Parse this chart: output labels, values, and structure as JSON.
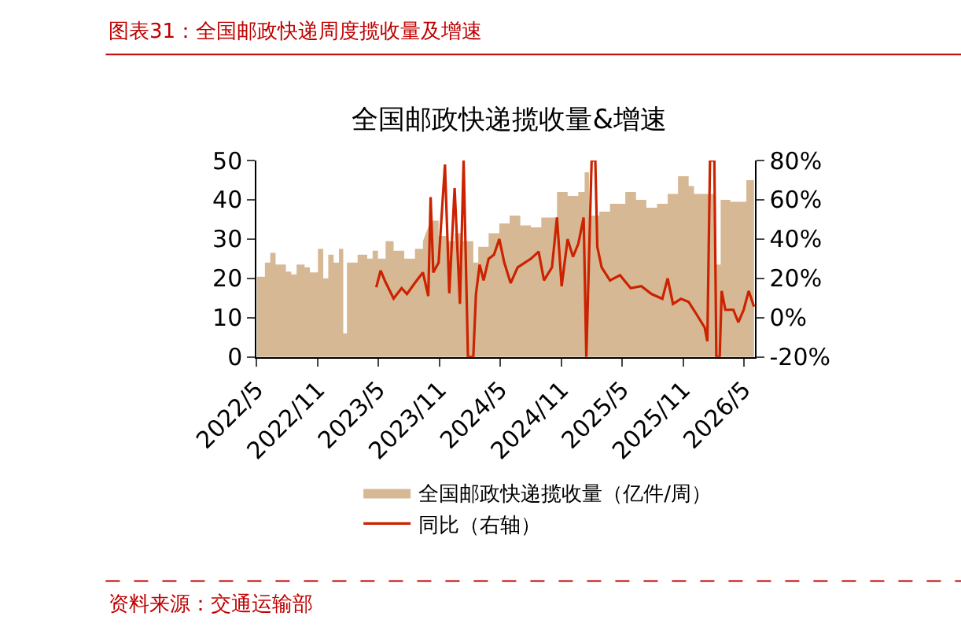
{
  "chart_data": {
    "type": "area",
    "title": "全国邮政快递揽收量&增速",
    "annotations": [
      "图表31：全国邮政快递周度揽收量及增速",
      "资料来源：交通运输部"
    ],
    "series": [
      {
        "name": "全国邮政快递揽收量（亿件/周）",
        "color": "#d6b894",
        "x": [
          "2022-05-02",
          "2022-05-26",
          "2022-06-11",
          "2022-06-27",
          "2022-07-28",
          "2022-08-13",
          "2022-08-29",
          "2022-09-22",
          "2022-10-08",
          "2022-11-01",
          "2022-11-17",
          "2022-12-02",
          "2022-12-18",
          "2023-01-03",
          "2023-01-16",
          "2023-01-27",
          "2023-02-28",
          "2023-03-29",
          "2023-04-14",
          "2023-04-30",
          "2023-05-23",
          "2023-06-16",
          "2023-07-18",
          "2023-08-19",
          "2023-09-12",
          "2023-09-19",
          "2023-10-05",
          "2023-10-29",
          "2023-11-22",
          "2023-12-16",
          "2024-01-09",
          "2024-02-10",
          "2024-02-25",
          "2024-03-27",
          "2024-04-28",
          "2024-05-29",
          "2024-06-30",
          "2024-08-01",
          "2024-09-01",
          "2024-10-18",
          "2024-11-19",
          "2024-12-21",
          "2025-01-09",
          "2025-01-22",
          "2025-02-22",
          "2025-03-26",
          "2025-05-11",
          "2025-06-12",
          "2025-07-13",
          "2025-08-14",
          "2025-09-15",
          "2025-10-16",
          "2025-11-17",
          "2025-12-03",
          "2026-01-04",
          "2026-02-05",
          "2026-02-21",
          "2026-03-22",
          "2026-04-23",
          "2026-05-09",
          "2026-06-01"
        ],
        "values": [
          20.4,
          24,
          26.5,
          23.5,
          21.7,
          21,
          23.5,
          22.8,
          21.5,
          27.5,
          20,
          26,
          24,
          27.5,
          6,
          24,
          26,
          25,
          27,
          25,
          29.5,
          27,
          25,
          27.5,
          29.5,
          null,
          34.7,
          30.8,
          29.5,
          31.5,
          29.5,
          24,
          28,
          31.5,
          34,
          36,
          33.5,
          33,
          35.5,
          42,
          41,
          42,
          47,
          36,
          37,
          39,
          42,
          40,
          38,
          39,
          41.5,
          46,
          43.5,
          41.5,
          41.5,
          23.5,
          40,
          39.5,
          39.5,
          45,
          44
        ]
      },
      {
        "name": "同比（右轴）",
        "type": "line",
        "axis": "y2",
        "color": "#cc2200",
        "x": [
          "2023-04-25",
          "2023-05-08",
          "2023-05-23",
          "2023-06-16",
          "2023-07-10",
          "2023-07-26",
          "2023-08-19",
          "2023-09-12",
          "2023-09-28",
          "2023-10-05",
          "2023-10-13",
          "2023-10-29",
          "2023-11-17",
          "2023-11-30",
          "2023-12-16",
          "2024-01-01",
          "2024-01-12",
          "2024-01-25",
          "2024-02-10",
          "2024-02-18",
          "2024-02-29",
          "2024-03-12",
          "2024-03-27",
          "2024-04-12",
          "2024-04-28",
          "2024-05-13",
          "2024-06-01",
          "2024-06-22",
          "2024-08-01",
          "2024-08-24",
          "2024-09-09",
          "2024-10-03",
          "2024-10-18",
          "2024-11-01",
          "2024-11-19",
          "2024-12-05",
          "2024-12-21",
          "2025-01-06",
          "2025-01-14",
          "2025-01-30",
          "2025-02-10",
          "2025-02-16",
          "2025-03-01",
          "2025-03-26",
          "2025-04-25",
          "2025-05-27",
          "2025-06-28",
          "2025-07-29",
          "2025-08-30",
          "2025-09-15",
          "2025-10-01",
          "2025-10-25",
          "2025-11-17",
          "2025-12-11",
          "2026-01-04",
          "2026-01-12",
          "2026-01-20",
          "2026-02-02",
          "2026-02-08",
          "2026-02-18",
          "2026-02-24",
          "2026-03-07",
          "2026-03-31",
          "2026-04-15",
          "2026-05-01",
          "2026-05-16",
          "2026-06-01"
        ],
        "values": [
          15.5,
          24,
          18,
          9.7,
          15,
          12,
          17.7,
          23,
          11,
          61.4,
          23,
          28,
          78,
          12.4,
          66,
          7,
          80,
          -20,
          -20,
          12,
          27,
          19,
          30,
          32,
          40,
          28,
          17.6,
          25.6,
          30,
          33.6,
          19,
          25.6,
          51,
          16,
          40,
          31,
          37.6,
          51,
          -20,
          80,
          80,
          36,
          25.6,
          19,
          21.6,
          15,
          16,
          12,
          9.6,
          20,
          7,
          9.6,
          8,
          1.6,
          -5,
          -12,
          80,
          80,
          -20,
          -20,
          13.6,
          4,
          4,
          -2.4,
          4,
          13.6,
          5.6
        ]
      }
    ],
    "xlim": [
      "2022-05-01",
      "2026-06-05"
    ],
    "xticks": [
      {
        "value": "2022-05-01",
        "label": "2022/5"
      },
      {
        "value": "2022-11-01",
        "label": "2022/11"
      },
      {
        "value": "2023-05-01",
        "label": "2023/5"
      },
      {
        "value": "2023-11-01",
        "label": "2023/11"
      },
      {
        "value": "2024-05-01",
        "label": "2024/5"
      },
      {
        "value": "2024-11-01",
        "label": "2024/11"
      },
      {
        "value": "2025-05-01",
        "label": "2025/5"
      },
      {
        "value": "2025-11-01",
        "label": "2025/11"
      },
      {
        "value": "2026-05-01",
        "label": "2026/5"
      }
    ],
    "ylim": [
      0,
      50
    ],
    "yticks": [
      0,
      10,
      20,
      30,
      40,
      50
    ],
    "y2lim": [
      -20,
      80
    ],
    "y2ticks": [
      {
        "value": -20,
        "label": "-20%"
      },
      {
        "value": 0,
        "label": "0%"
      },
      {
        "value": 20,
        "label": "20%"
      },
      {
        "value": 40,
        "label": "40%"
      },
      {
        "value": 60,
        "label": "60%"
      },
      {
        "value": 80,
        "label": "80%"
      }
    ],
    "legend": "bottom",
    "marker": "none",
    "line_style": "solid"
  }
}
